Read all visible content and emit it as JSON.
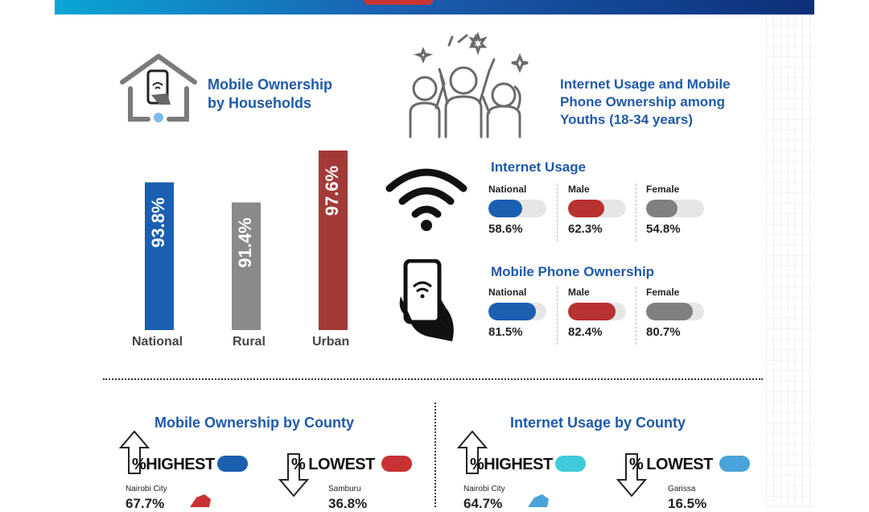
{
  "household": {
    "title_line1": "Mobile Ownership",
    "title_line2": "by Households"
  },
  "chart_data": {
    "type": "bar",
    "categories": [
      "National",
      "Rural",
      "Urban"
    ],
    "values": [
      93.8,
      91.4,
      97.6
    ],
    "value_labels": [
      "93.8%",
      "91.4%",
      "97.6%"
    ],
    "colors": [
      "#1b5fb0",
      "#8a8a8a",
      "#a33a38"
    ],
    "title": "Mobile Ownership by Households",
    "ylim": [
      80,
      100
    ]
  },
  "youth": {
    "title_line1": "Internet Usage and Mobile",
    "title_line2": "Phone Ownership among",
    "title_line3": "Youths (18-34 years)",
    "internet": {
      "title": "Internet Usage",
      "groups": [
        {
          "label": "National",
          "value": 58.6,
          "text": "58.6%",
          "color": "#1b5fb0"
        },
        {
          "label": "Male",
          "value": 62.3,
          "text": "62.3%",
          "color": "#b8322f"
        },
        {
          "label": "Female",
          "value": 54.8,
          "text": "54.8%",
          "color": "#808080"
        }
      ]
    },
    "mobile": {
      "title": "Mobile Phone Ownership",
      "groups": [
        {
          "label": "National",
          "value": 81.5,
          "text": "81.5%",
          "color": "#1b5fb0"
        },
        {
          "label": "Male",
          "value": 82.4,
          "text": "82.4%",
          "color": "#b8322f"
        },
        {
          "label": "Female",
          "value": 80.7,
          "text": "80.7%",
          "color": "#808080"
        }
      ]
    }
  },
  "county_mobile": {
    "title": "Mobile Ownership by County",
    "highest": {
      "word": "HIGHEST",
      "county": "Nairobi City",
      "value": "67.7%",
      "color": "#1b5fb0"
    },
    "lowest": {
      "word": "LOWEST",
      "county": "Samburu",
      "value": "36.8%",
      "color": "#c83232"
    }
  },
  "county_internet": {
    "title": "Internet Usage by County",
    "highest": {
      "word": "HIGHEST",
      "county": "Nairobi City",
      "value": "64.7%",
      "color": "#3fcbd9"
    },
    "lowest": {
      "word": "LOWEST",
      "county": "Garissa",
      "value": "16.5%",
      "color": "#4aa3d8"
    }
  }
}
